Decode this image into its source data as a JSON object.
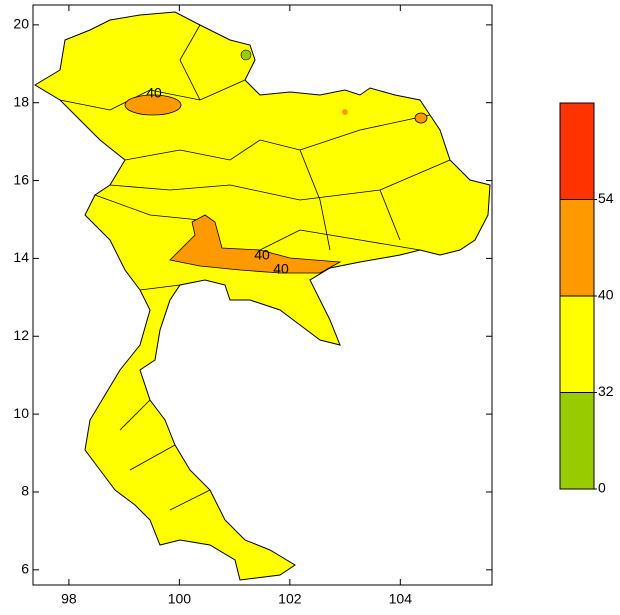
{
  "chart_data": {
    "type": "map",
    "xlim": [
      97.35,
      105.66
    ],
    "ylim": [
      5.61,
      20.51
    ],
    "xticks": [
      98,
      100,
      102,
      104
    ],
    "yticks": [
      6,
      8,
      10,
      12,
      14,
      16,
      18,
      20
    ],
    "contour_labels": [
      40,
      40,
      40
    ],
    "colorbar": {
      "levels": [
        0,
        32,
        40,
        54
      ],
      "colors": [
        "#99cc00",
        "#ffff00",
        "#ff9900",
        "#ff3300"
      ]
    }
  }
}
